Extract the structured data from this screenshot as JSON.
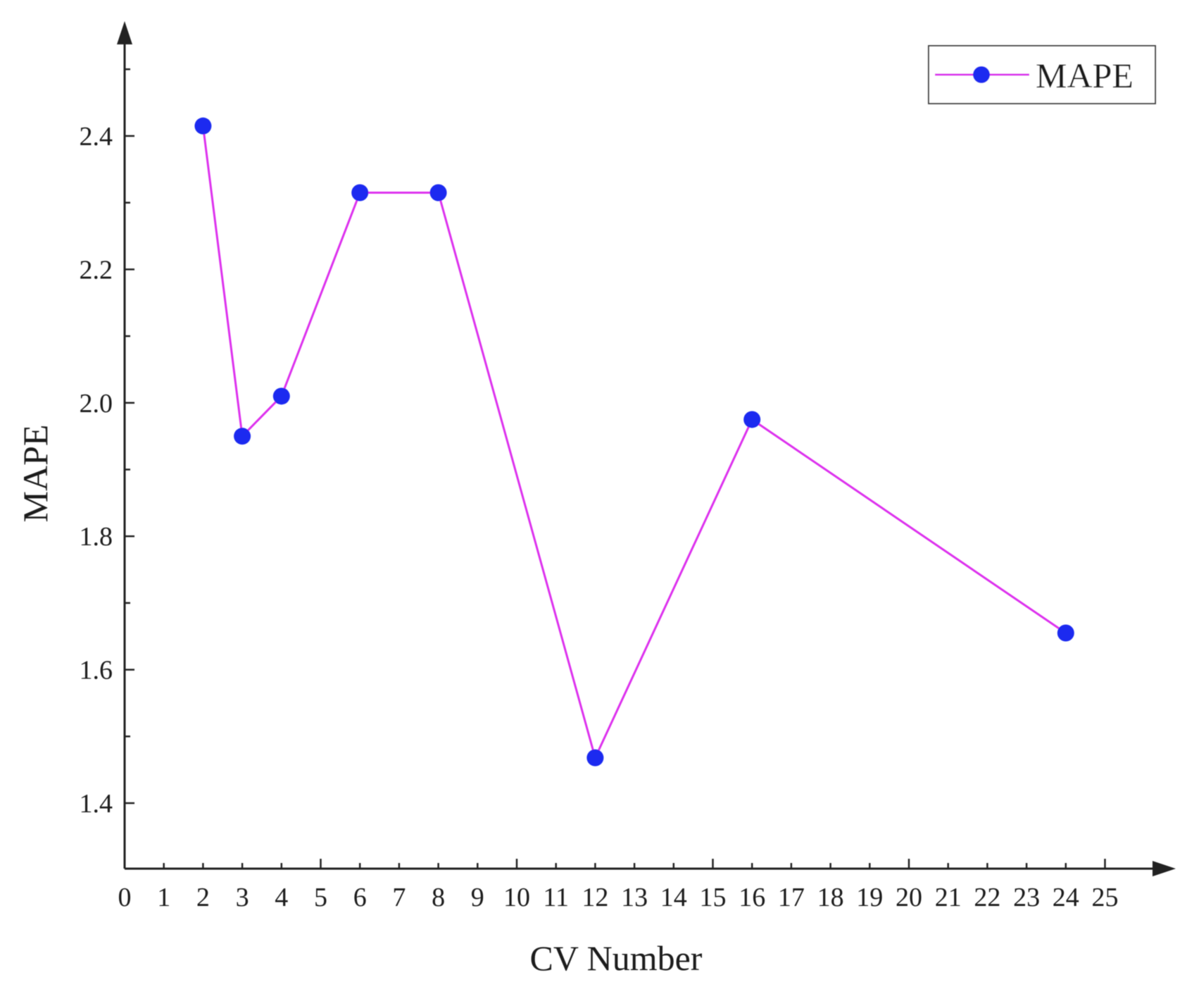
{
  "chart_data": {
    "type": "line",
    "xlabel": "CV Number",
    "ylabel": "MAPE",
    "xlim": [
      0,
      25
    ],
    "ylim": [
      1.3,
      2.55
    ],
    "x_ticks": [
      0,
      1,
      2,
      3,
      4,
      5,
      6,
      7,
      8,
      9,
      10,
      11,
      12,
      13,
      14,
      15,
      16,
      17,
      18,
      19,
      20,
      21,
      22,
      23,
      24,
      25
    ],
    "y_ticks": [
      1.4,
      1.6,
      1.8,
      2.0,
      2.2,
      2.4
    ],
    "y_tick_labels": [
      "1.4",
      "1.6",
      "1.8",
      "2.0",
      "2.2",
      "2.4"
    ],
    "y_minor_ticks": [
      1.5,
      1.7,
      1.9,
      2.1,
      2.3,
      2.5
    ],
    "grid": false,
    "legend_position": "top-right",
    "series": [
      {
        "name": "MAPE",
        "x": [
          2,
          3,
          4,
          6,
          8,
          12,
          16,
          24
        ],
        "values": [
          2.415,
          1.95,
          2.01,
          2.315,
          2.315,
          1.468,
          1.975,
          1.655
        ],
        "line_color": "#dd33ee",
        "marker_color": "#1a2cf0"
      }
    ]
  }
}
